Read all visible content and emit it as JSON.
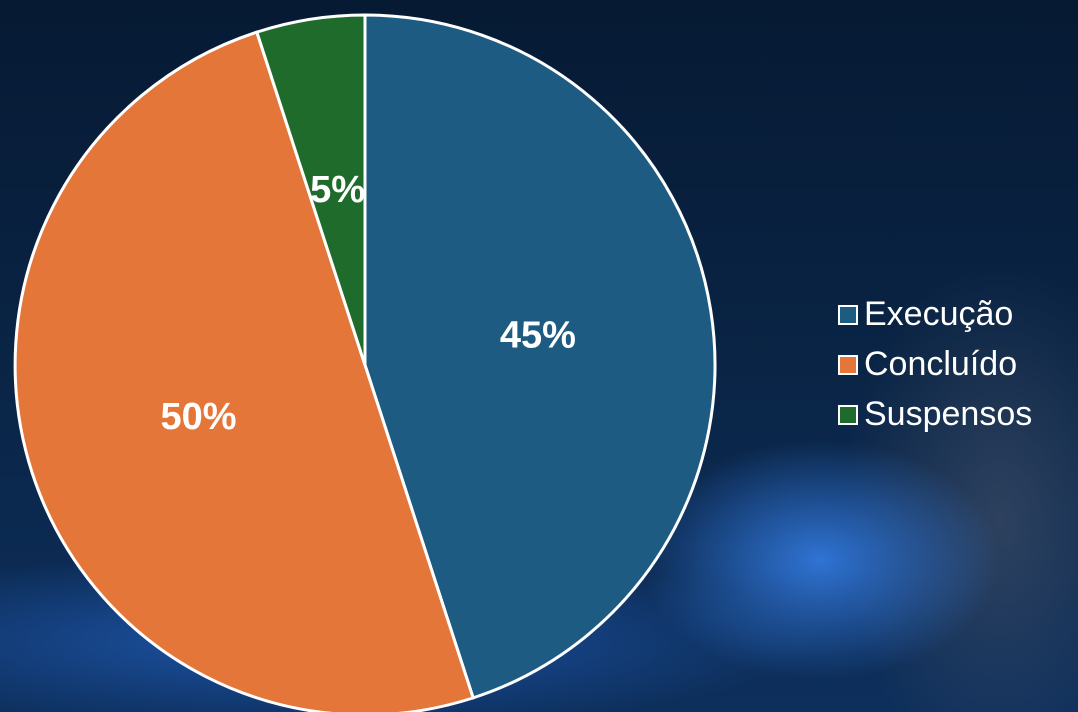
{
  "chart_data": {
    "type": "pie",
    "categories": [
      "Execução",
      "Concluído",
      "Suspensos"
    ],
    "values": [
      45,
      50,
      5
    ],
    "value_labels": [
      "45%",
      "50%",
      "5%"
    ],
    "colors": [
      "#1d5b82",
      "#e5763a",
      "#1f6b2c"
    ],
    "legend": "right"
  }
}
